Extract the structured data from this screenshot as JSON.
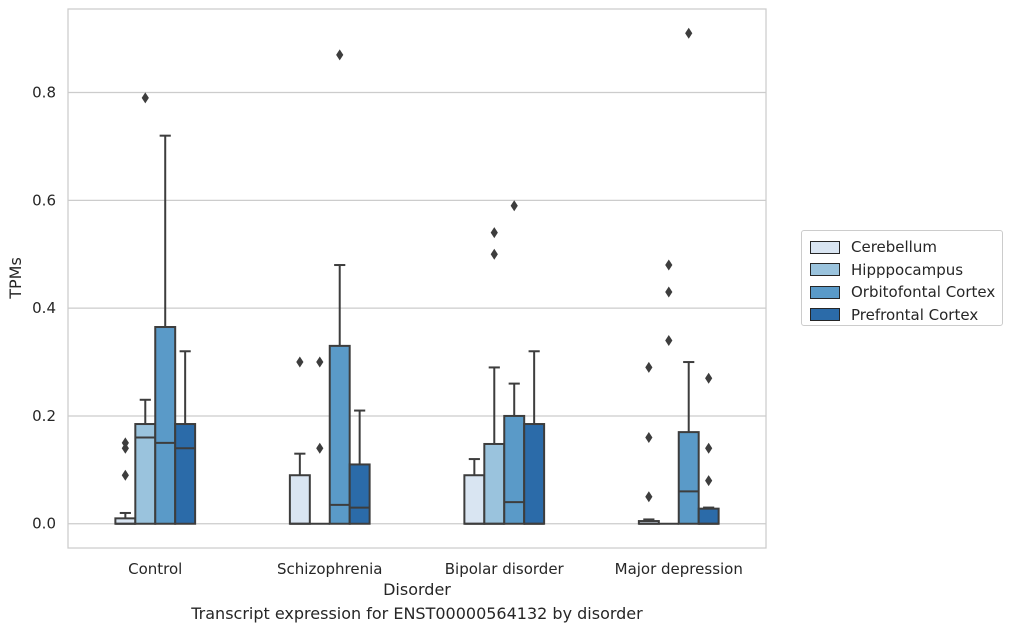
{
  "caption": "Transcript expression for ENST00000564132 by disorder",
  "chart_data": {
    "type": "box",
    "xlabel": "Disorder",
    "ylabel": "TPMs",
    "ylim": [
      -0.045,
      0.955
    ],
    "yticks": [
      0.0,
      0.2,
      0.4,
      0.6,
      0.8
    ],
    "ytick_labels": [
      "0.0",
      "0.2",
      "0.4",
      "0.6",
      "0.8"
    ],
    "grid": "horizontal",
    "legend_position": "right-center",
    "categories": [
      "Control",
      "Schizophrenia",
      "Bipolar disorder",
      "Major depression"
    ],
    "series": [
      {
        "name": "Cerebellum",
        "color": "#d9e5f2",
        "boxes": [
          {
            "whislo": 0.0,
            "q1": 0.0,
            "med": 0.0,
            "q3": 0.01,
            "whishi": 0.02,
            "fliers": [
              0.09,
              0.14,
              0.15
            ]
          },
          {
            "whislo": 0.0,
            "q1": 0.0,
            "med": 0.0,
            "q3": 0.09,
            "whishi": 0.13,
            "fliers": [
              0.3
            ]
          },
          {
            "whislo": 0.0,
            "q1": 0.0,
            "med": 0.0,
            "q3": 0.09,
            "whishi": 0.12,
            "fliers": []
          },
          {
            "whislo": 0.0,
            "q1": 0.0,
            "med": 0.0,
            "q3": 0.005,
            "whishi": 0.008,
            "fliers": [
              0.05,
              0.16,
              0.29
            ]
          }
        ]
      },
      {
        "name": "Hipppocampus",
        "color": "#9ac3dd",
        "boxes": [
          {
            "whislo": 0.0,
            "q1": 0.0,
            "med": 0.16,
            "q3": 0.185,
            "whishi": 0.23,
            "fliers": [
              0.79
            ]
          },
          {
            "whislo": 0.0,
            "q1": 0.0,
            "med": 0.0,
            "q3": 0.0,
            "whishi": 0.0,
            "fliers": [
              0.14,
              0.3
            ]
          },
          {
            "whislo": 0.0,
            "q1": 0.0,
            "med": 0.0,
            "q3": 0.148,
            "whishi": 0.29,
            "fliers": [
              0.5,
              0.54
            ]
          },
          {
            "whislo": 0.0,
            "q1": 0.0,
            "med": 0.0,
            "q3": 0.0,
            "whishi": 0.0,
            "fliers": [
              0.34,
              0.43,
              0.48
            ]
          }
        ]
      },
      {
        "name": "Orbitofontal Cortex",
        "color": "#5a9ac8",
        "boxes": [
          {
            "whislo": 0.0,
            "q1": 0.0,
            "med": 0.15,
            "q3": 0.365,
            "whishi": 0.72,
            "fliers": []
          },
          {
            "whislo": 0.0,
            "q1": 0.0,
            "med": 0.035,
            "q3": 0.33,
            "whishi": 0.48,
            "fliers": [
              0.87
            ]
          },
          {
            "whislo": 0.0,
            "q1": 0.0,
            "med": 0.04,
            "q3": 0.2,
            "whishi": 0.26,
            "fliers": [
              0.59
            ]
          },
          {
            "whislo": 0.0,
            "q1": 0.0,
            "med": 0.06,
            "q3": 0.17,
            "whishi": 0.3,
            "fliers": [
              0.91
            ]
          }
        ]
      },
      {
        "name": "Prefrontal Cortex",
        "color": "#2b6ba9",
        "boxes": [
          {
            "whislo": 0.0,
            "q1": 0.0,
            "med": 0.14,
            "q3": 0.185,
            "whishi": 0.32,
            "fliers": []
          },
          {
            "whislo": 0.0,
            "q1": 0.0,
            "med": 0.03,
            "q3": 0.11,
            "whishi": 0.21,
            "fliers": []
          },
          {
            "whislo": 0.0,
            "q1": 0.0,
            "med": 0.0,
            "q3": 0.185,
            "whishi": 0.32,
            "fliers": []
          },
          {
            "whislo": 0.0,
            "q1": 0.0,
            "med": 0.0,
            "q3": 0.028,
            "whishi": 0.03,
            "fliers": [
              0.08,
              0.14,
              0.27
            ]
          }
        ]
      }
    ]
  }
}
